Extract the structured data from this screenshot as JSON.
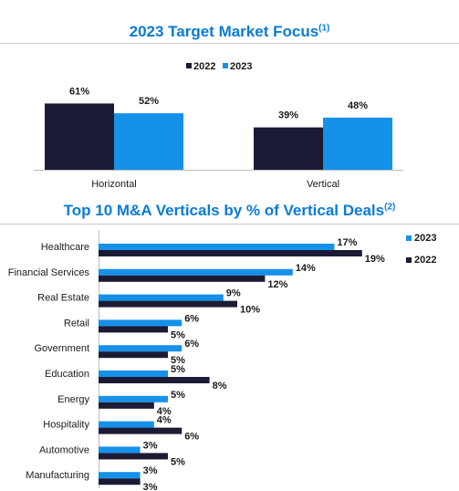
{
  "colors": {
    "c2022": "#1b1b35",
    "c2023": "#1591ea",
    "title": "#0a7bd6"
  },
  "chart_data": [
    {
      "type": "bar",
      "title": "2023 Target Market Focus",
      "title_note": "(1)",
      "categories": [
        "Horizontal",
        "Vertical"
      ],
      "series": [
        {
          "name": "2022",
          "values": [
            61,
            39
          ],
          "labels": [
            "61%",
            "39%"
          ]
        },
        {
          "name": "2023",
          "values": [
            52,
            48
          ],
          "labels": [
            "52%",
            "48%"
          ]
        }
      ],
      "legend_position": "top-center",
      "unit": "%",
      "grid": false
    },
    {
      "type": "bar",
      "orientation": "horizontal",
      "title": "Top 10 M&A Verticals by % of Vertical Deals",
      "title_note": "(2)",
      "categories": [
        "Healthcare",
        "Financial Services",
        "Real Estate",
        "Retail",
        "Government",
        "Education",
        "Energy",
        "Hospitality",
        "Automotive",
        "Manufacturing"
      ],
      "series": [
        {
          "name": "2023",
          "values": [
            17,
            14,
            9,
            6,
            6,
            5,
            5,
            4,
            3,
            3
          ],
          "labels": [
            "17%",
            "14%",
            "9%",
            "6%",
            "6%",
            "5%",
            "5%",
            "4%",
            "3%",
            "3%"
          ]
        },
        {
          "name": "2022",
          "values": [
            19,
            12,
            10,
            5,
            5,
            8,
            4,
            6,
            5,
            3
          ],
          "labels": [
            "19%",
            "12%",
            "10%",
            "5%",
            "5%",
            "8%",
            "4%",
            "6%",
            "5%",
            "3%"
          ]
        }
      ],
      "legend_position": "right",
      "unit": "%",
      "grid": false
    }
  ]
}
